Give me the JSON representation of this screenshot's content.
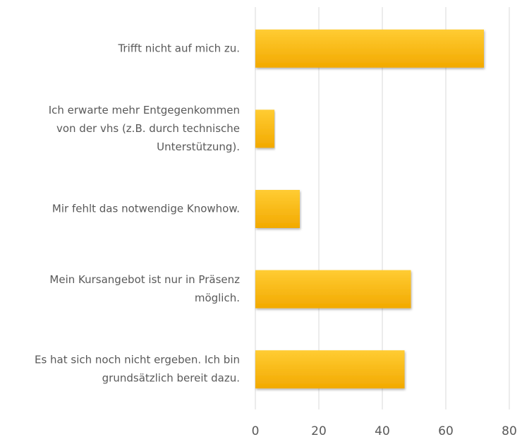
{
  "chart_data": {
    "type": "bar",
    "orientation": "horizontal",
    "categories": [
      [
        "Trifft nicht auf mich zu."
      ],
      [
        "Ich erwarte mehr Entgegenkommen",
        "von der vhs (z.B. durch technische",
        "Unterstützung)."
      ],
      [
        "Mir fehlt das notwendige Knowhow."
      ],
      [
        "Mein Kursangebot ist nur in Präsenz",
        "möglich."
      ],
      [
        "Es hat sich noch nicht ergeben. Ich bin",
        "grundsätzlich bereit dazu."
      ]
    ],
    "values": [
      72,
      6,
      14,
      49,
      47
    ],
    "color": "#ffc000",
    "xlim": [
      0,
      80
    ],
    "xticks": [
      0,
      20,
      40,
      60,
      80
    ],
    "grid": true
  }
}
